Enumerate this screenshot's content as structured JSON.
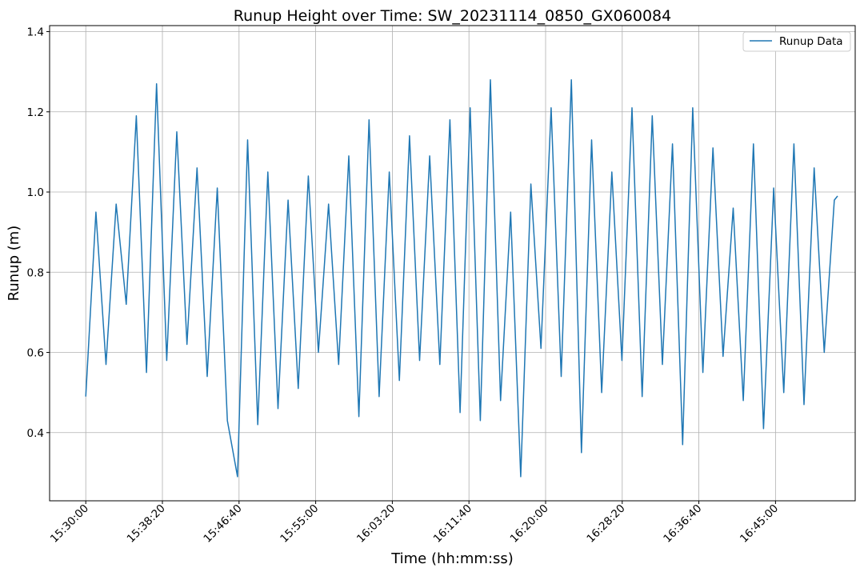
{
  "chart_data": {
    "type": "line",
    "title": "Runup Height over Time: SW_20231114_0850_GX060084",
    "xlabel": "Time (hh:mm:ss)",
    "ylabel": "Runup (m)",
    "x_tick_labels": [
      "15:30:00",
      "15:38:20",
      "15:46:40",
      "15:55:00",
      "16:03:20",
      "16:11:40",
      "16:20:00",
      "16:28:20",
      "16:36:40",
      "16:45:00"
    ],
    "x_range": [
      "15:26:04",
      "16:53:40"
    ],
    "y_tick_labels": [
      "0.4",
      "0.6",
      "0.8",
      "1.0",
      "1.2",
      "1.4"
    ],
    "ylim": [
      0.23,
      1.415
    ],
    "grid": true,
    "legend_position": "top-right",
    "series": [
      {
        "name": "Runup Data",
        "color": "#1f77b4",
        "x": [
          "15:30:00",
          "15:31:06",
          "15:32:12",
          "15:33:18",
          "15:34:24",
          "15:35:30",
          "15:36:36",
          "15:37:42",
          "15:38:48",
          "15:39:54",
          "15:41:00",
          "15:42:06",
          "15:43:12",
          "15:44:18",
          "15:45:24",
          "15:46:30",
          "15:47:36",
          "15:48:42",
          "15:49:48",
          "15:50:54",
          "15:52:00",
          "15:53:06",
          "15:54:12",
          "15:55:18",
          "15:56:24",
          "15:57:30",
          "15:58:36",
          "15:59:42",
          "16:00:48",
          "16:01:54",
          "16:03:00",
          "16:04:06",
          "16:05:12",
          "16:06:18",
          "16:07:24",
          "16:08:30",
          "16:09:36",
          "16:10:42",
          "16:11:48",
          "16:12:54",
          "16:14:00",
          "16:15:06",
          "16:16:12",
          "16:17:18",
          "16:18:24",
          "16:19:30",
          "16:20:36",
          "16:21:42",
          "16:22:48",
          "16:23:54",
          "16:25:00",
          "16:26:06",
          "16:27:12",
          "16:28:18",
          "16:29:24",
          "16:30:30",
          "16:31:36",
          "16:32:42",
          "16:33:48",
          "16:34:54",
          "16:36:00",
          "16:37:06",
          "16:38:12",
          "16:39:18",
          "16:40:24",
          "16:41:30",
          "16:42:36",
          "16:43:42",
          "16:44:48",
          "16:45:54",
          "16:47:00",
          "16:48:06",
          "16:49:12",
          "16:50:18",
          "16:51:24",
          "16:51:45"
        ],
        "values": [
          0.49,
          0.95,
          0.57,
          0.97,
          0.72,
          1.19,
          0.55,
          1.27,
          0.58,
          1.15,
          0.62,
          1.06,
          0.54,
          1.01,
          0.43,
          0.29,
          1.13,
          0.42,
          1.05,
          0.46,
          0.98,
          0.51,
          1.04,
          0.6,
          0.97,
          0.57,
          1.09,
          0.44,
          1.18,
          0.49,
          1.05,
          0.53,
          1.14,
          0.58,
          1.09,
          0.57,
          1.18,
          0.45,
          1.21,
          0.43,
          1.28,
          0.48,
          0.95,
          0.29,
          1.02,
          0.61,
          1.21,
          0.54,
          1.28,
          0.35,
          1.13,
          0.5,
          1.05,
          0.58,
          1.21,
          0.49,
          1.19,
          0.57,
          1.12,
          0.37,
          1.21,
          0.55,
          1.11,
          0.59,
          0.96,
          0.48,
          1.12,
          0.41,
          1.01,
          0.5,
          1.12,
          0.47,
          1.06,
          0.6,
          0.98,
          0.99
        ]
      }
    ]
  }
}
